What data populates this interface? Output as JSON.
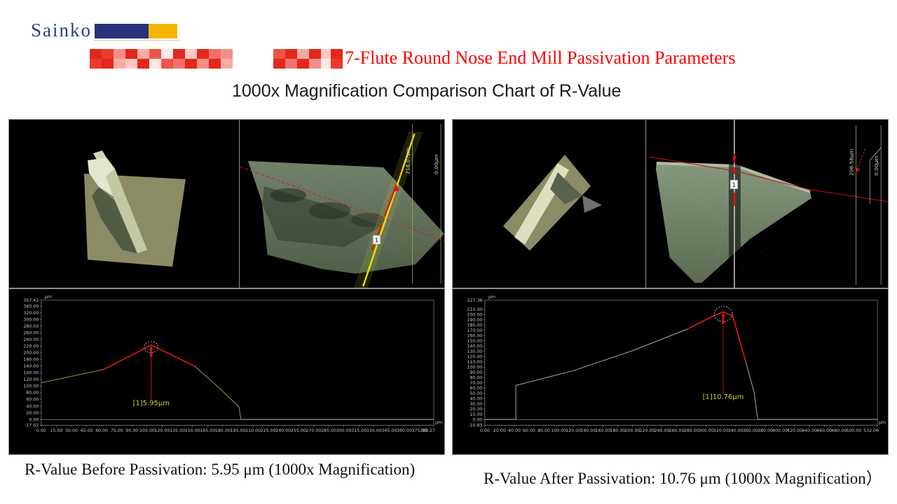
{
  "logo": {
    "text": "Sainko",
    "color": "#2d3a8c",
    "flag_blue": "#26337b",
    "flag_yellow": "#f5b500"
  },
  "title": {
    "text": "7-Flute Round Nose End Mill Passivation Parameters",
    "color": "#fe0000",
    "mosaic_palette": [
      "#e4271c",
      "#ef5448",
      "#f58f86",
      "#fbc9c4",
      "#e93a2e",
      "#f2726a",
      "#f8aba3",
      "#fde6e3"
    ],
    "mosaic_cluster1": [
      [
        0,
        4,
        2,
        0,
        6,
        1,
        7,
        0,
        3,
        0,
        5,
        2
      ],
      [
        4,
        0,
        6,
        3,
        0,
        7,
        1,
        5,
        0,
        2,
        0,
        6
      ]
    ],
    "mosaic_cluster2": [
      [
        1,
        0,
        6,
        0,
        3
      ],
      [
        0,
        5,
        0,
        2,
        7
      ]
    ],
    "mosaic_fragment": [
      [
        0
      ],
      [
        4
      ]
    ]
  },
  "subtitle": "1000x Magnification Comparison Chart of R-Value",
  "panels": [
    {
      "name": "before",
      "views": {
        "marker": "1",
        "scale_max_label": "218.07μm",
        "scale_zero_label": "0.00μm"
      },
      "caption": "R-Value Before Passivation: 5.95 μm (1000x Magnification)"
    },
    {
      "name": "after",
      "views": {
        "marker": "1",
        "scale_max_label": "206.58μm",
        "scale_zero_label": "0.00μm"
      },
      "caption": "R-Value After Passivation: 10.76 μm (1000x Magnification）"
    }
  ],
  "chart_data": [
    {
      "type": "line",
      "name": "profile-before-passivation",
      "title": "",
      "xlabel": "μm",
      "ylabel": "μm",
      "unit": "μm",
      "grid": false,
      "legend": "none",
      "xlim": [
        0,
        389.27
      ],
      "ylim": [
        -17.02,
        357.42
      ],
      "axis_color": "#8d8d8d",
      "tick_color": "#c8c8c8",
      "x_ticks": [
        0,
        15,
        30,
        45,
        60,
        75,
        90,
        105,
        120,
        135,
        150,
        165,
        180,
        195,
        210,
        225,
        240,
        255,
        270,
        285,
        300,
        315,
        330,
        345,
        360,
        375,
        389.27
      ],
      "y_ticks": [
        357.42,
        340,
        320,
        300,
        280,
        260,
        240,
        220,
        200,
        180,
        160,
        140,
        120,
        100,
        80,
        60,
        40,
        20,
        0,
        -17.02
      ],
      "segments": [
        {
          "color": "#8f8f3f",
          "points": [
            [
              0,
              110
            ],
            [
              62,
              150
            ]
          ]
        },
        {
          "color": "#e01818",
          "width": 1.6,
          "points": [
            [
              62,
              150
            ],
            [
              109,
              223
            ],
            [
              152,
              160
            ]
          ]
        },
        {
          "color": "#8f8f3f",
          "points": [
            [
              152,
              160
            ],
            [
              176,
              96
            ],
            [
              196,
              38
            ],
            [
              198,
              0
            ]
          ]
        },
        {
          "color": "#9a9a9a",
          "points": [
            [
              198,
              0
            ],
            [
              389.27,
              0
            ]
          ]
        }
      ],
      "peak": {
        "x": 109,
        "y": 223,
        "circle_rx": 10,
        "circle_ry": 8
      },
      "annotation": {
        "text": "[1]5.95μm",
        "color": "#cdd32a",
        "line_to_y": 55,
        "text_y": 42
      }
    },
    {
      "type": "line",
      "name": "profile-after-passivation",
      "title": "",
      "xlabel": "μm",
      "ylabel": "μm",
      "unit": "μm",
      "grid": false,
      "legend": "none",
      "xlim": [
        0,
        532.06
      ],
      "ylim": [
        -10.83,
        227.36
      ],
      "axis_color": "#8d8d8d",
      "tick_color": "#c8c8c8",
      "x_ticks": [
        0,
        20,
        40,
        60,
        80,
        100,
        120,
        140,
        160,
        180,
        200,
        220,
        240,
        260,
        280,
        300,
        320,
        340,
        360,
        380,
        400,
        420,
        440,
        460,
        480,
        500,
        532.06
      ],
      "y_ticks": [
        227.36,
        210,
        200,
        190,
        180,
        170,
        160,
        150,
        140,
        130,
        120,
        110,
        100,
        90,
        80,
        70,
        60,
        50,
        40,
        30,
        20,
        10,
        0,
        -10.83
      ],
      "segments": [
        {
          "color": "#9a9a9a",
          "points": [
            [
              0,
              0
            ],
            [
              42,
              0
            ],
            [
              42,
              65
            ],
            [
              120,
              93
            ],
            [
              200,
              131
            ],
            [
              274,
              172
            ]
          ]
        },
        {
          "color": "#e01818",
          "width": 1.6,
          "points": [
            [
              274,
              172
            ],
            [
              312,
              199
            ],
            [
              323,
              205
            ],
            [
              336,
              197
            ],
            [
              354,
              108
            ]
          ]
        },
        {
          "color": "#9a9a9a",
          "points": [
            [
              354,
              108
            ],
            [
              365,
              52
            ],
            [
              369,
              8
            ],
            [
              370,
              0
            ]
          ]
        },
        {
          "color": "#9a9a9a",
          "points": [
            [
              370,
              0
            ],
            [
              532.06,
              0
            ]
          ]
        }
      ],
      "peak": {
        "x": 323,
        "y": 205,
        "circle_rx": 13,
        "circle_ry": 11
      },
      "annotation": {
        "text": "[1]10.76μm",
        "color": "#cdd32a",
        "line_to_y": 48,
        "text_y": 39
      }
    }
  ]
}
